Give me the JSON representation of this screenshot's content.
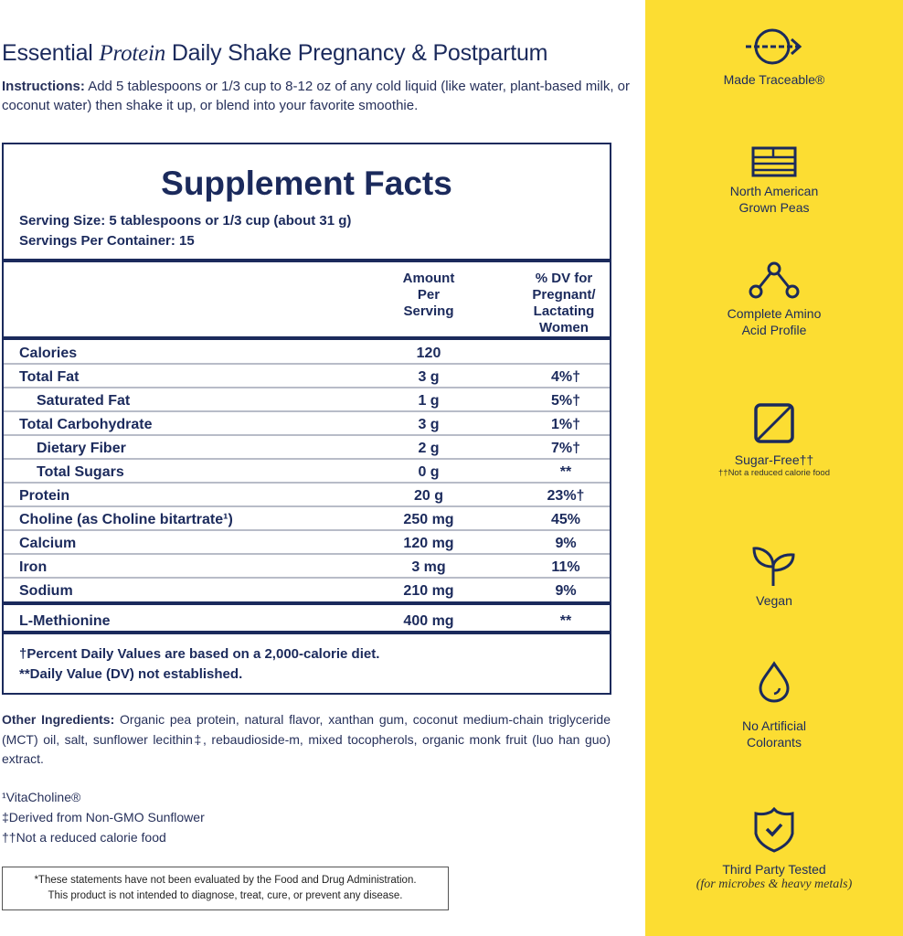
{
  "header": {
    "title_pre": "Essential",
    "title_italic": "Protein",
    "title_post": "Daily Shake Pregnancy & Postpartum",
    "instructions_label": "Instructions:",
    "instructions_text": "Add 5 tablespoons or 1/3 cup to 8-12 oz of any cold liquid (like water, plant-based milk, or coconut water) then shake it up, or blend into your favorite smoothie."
  },
  "facts": {
    "title": "Supplement Facts",
    "serving_size": "Serving Size: 5 tablespoons or 1/3 cup (about 31 g)",
    "servings_per_container": "Servings Per Container: 15",
    "col_amount": "Amount Per Serving",
    "col_dv": "% DV for Pregnant/ Lactating Women",
    "rows": [
      {
        "name": "Calories",
        "amount": "120",
        "dv": ""
      },
      {
        "name": "Total Fat",
        "amount": "3 g",
        "dv": "4%†"
      },
      {
        "name": "Saturated Fat",
        "amount": "1 g",
        "dv": "5%†"
      },
      {
        "name": "Total Carbohydrate",
        "amount": "3 g",
        "dv": "1%†"
      },
      {
        "name": "Dietary Fiber",
        "amount": "2 g",
        "dv": "7%†"
      },
      {
        "name": "Total Sugars",
        "amount": "0 g",
        "dv": "**"
      },
      {
        "name": "Protein",
        "amount": "20 g",
        "dv": "23%†"
      },
      {
        "name": "Choline (as Choline bitartrate¹)",
        "amount": "250 mg",
        "dv": "45%"
      },
      {
        "name": "Calcium",
        "amount": "120 mg",
        "dv": "9%"
      },
      {
        "name": "Iron",
        "amount": "3 mg",
        "dv": "11%"
      },
      {
        "name": "Sodium",
        "amount": "210 mg",
        "dv": "9%"
      },
      {
        "name": "L-Methionine",
        "amount": "400 mg",
        "dv": "**"
      }
    ],
    "footnote1": "†Percent Daily Values are based on a 2,000-calorie diet.",
    "footnote2": "**Daily Value (DV) not established."
  },
  "other": {
    "label": "Other Ingredients:",
    "text": "Organic pea protein, natural flavor, xanthan gum, coconut medium-chain triglyceride (MCT) oil, salt, sunflower lecithin‡, rebaudioside-m, mixed tocopherols, organic monk fruit (luo han guo) extract."
  },
  "notes": [
    "¹VitaCholine®",
    "‡Derived from Non-GMO Sunflower",
    "††Not a reduced calorie food"
  ],
  "disclaimer": {
    "line1": "*These statements have not been evaluated by the Food and Drug Administration.",
    "line2": "This product is not intended to diagnose, treat, cure, or prevent any disease."
  },
  "panel": {
    "bg": "#fcdd32",
    "accent": "#1b2a5c",
    "items": [
      {
        "icon": "traceable-arrow-icon",
        "label": "Made Traceable®"
      },
      {
        "icon": "flag-icon",
        "label": "North American",
        "label2": "Grown Peas"
      },
      {
        "icon": "molecule-icon",
        "label": "Complete Amino",
        "label2": "Acid Profile"
      },
      {
        "icon": "sugar-free-square-icon",
        "label": "Sugar-Free††",
        "sub": "††Not a reduced calorie food"
      },
      {
        "icon": "sprout-icon",
        "label": "Vegan"
      },
      {
        "icon": "drop-icon",
        "label": "No Artificial",
        "label2": "Colorants"
      },
      {
        "icon": "shield-check-icon",
        "label": "Third Party Tested",
        "sub": "(for microbes & heavy metals)"
      }
    ]
  }
}
